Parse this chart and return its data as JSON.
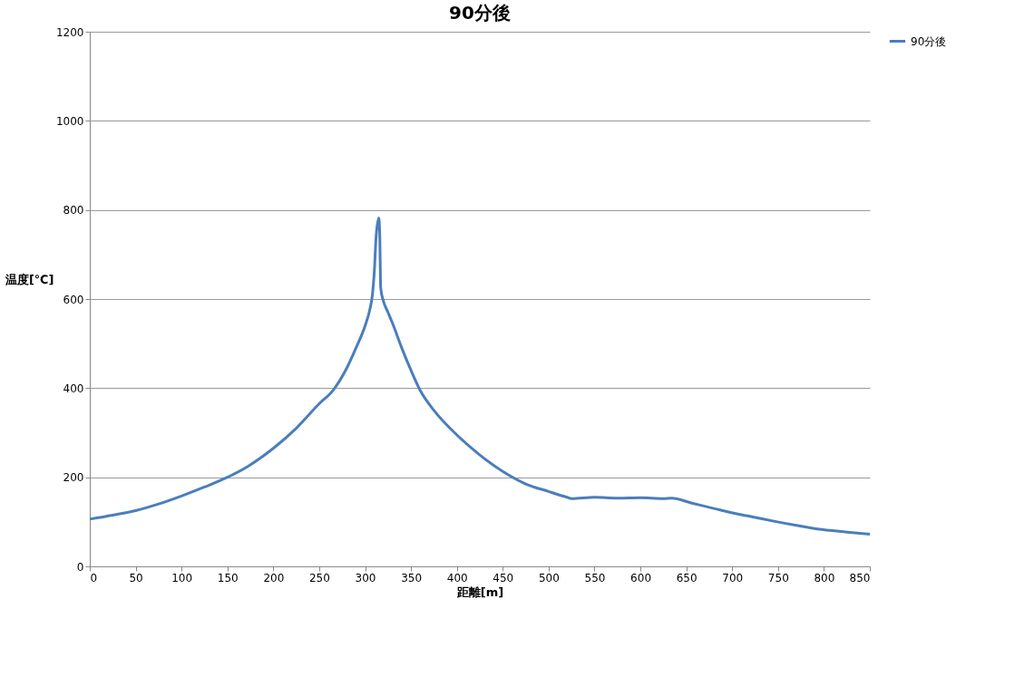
{
  "chart_data": {
    "type": "line",
    "title": "90分後",
    "xlabel": "距離[m]",
    "ylabel": "温度[℃]",
    "x": [
      0,
      25,
      50,
      75,
      100,
      125,
      150,
      175,
      200,
      225,
      250,
      265,
      280,
      290,
      300,
      305,
      308,
      310,
      312,
      315,
      316,
      317,
      320,
      325,
      330,
      340,
      350,
      360,
      375,
      400,
      425,
      450,
      475,
      500,
      520,
      525,
      550,
      575,
      600,
      625,
      634,
      656,
      680,
      705,
      725,
      744,
      770,
      793,
      825,
      850
    ],
    "series": [
      {
        "name": "90分後",
        "color": "#4a7ebb",
        "values": [
          106,
          115,
          125,
          140,
          158,
          178,
          200,
          228,
          265,
          310,
          365,
          395,
          445,
          490,
          540,
          575,
          610,
          660,
          740,
          782,
          740,
          625,
          595,
          570,
          545,
          490,
          440,
          395,
          350,
          295,
          250,
          213,
          185,
          168,
          155,
          152,
          155,
          153,
          154,
          152,
          153,
          142,
          130,
          118,
          110,
          102,
          92,
          84,
          77,
          72
        ]
      }
    ],
    "xlim": [
      0,
      850
    ],
    "xticks": [
      0,
      50,
      100,
      150,
      200,
      250,
      300,
      350,
      400,
      450,
      500,
      550,
      600,
      650,
      700,
      750,
      800,
      850
    ],
    "ylim": [
      0,
      1200
    ],
    "yticks": [
      0,
      200,
      400,
      600,
      800,
      1000,
      1200
    ],
    "grid": "y",
    "legend": "right",
    "marker": "none",
    "line_style": "solid"
  }
}
